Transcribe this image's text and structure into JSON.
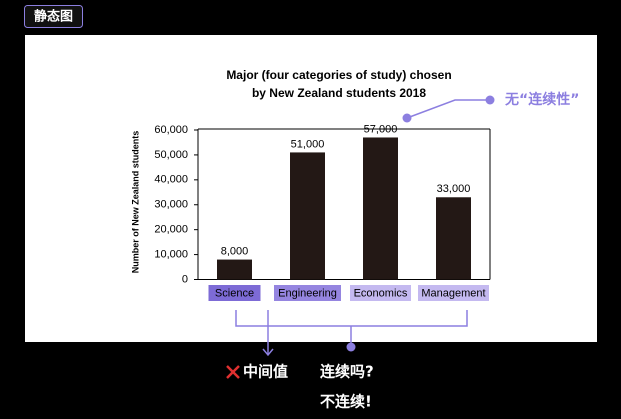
{
  "badge": "静态图",
  "chart_data": {
    "type": "bar",
    "title": [
      "Major (four categories of study) chosen",
      "by New Zealand students 2018"
    ],
    "y_label": "Number of New Zealand students",
    "categories": [
      "Science",
      "Engineering",
      "Economics",
      "Management"
    ],
    "category_colors": [
      "#7d6bd6",
      "#9585e0",
      "#c4b9f0",
      "#c4b9f0"
    ],
    "values": [
      8000,
      51000,
      57000,
      33000
    ],
    "value_labels": [
      "8,000",
      "51,000",
      "57,000",
      "33,000"
    ],
    "color": "#231815",
    "ylim": [
      0,
      60000
    ],
    "yticks": [
      0,
      {
        "value": 10000,
        "label": "10,000"
      },
      {
        "value": 20000,
        "label": "20,000"
      },
      {
        "value": 30000,
        "label": "30,000"
      },
      {
        "value": 40000,
        "label": "40,000"
      },
      {
        "value": 50000,
        "label": "50,000"
      },
      {
        "value": 60000,
        "label": "60,000"
      }
    ],
    "grid": false,
    "annotations": {
      "no_continuity": "无“连续性”",
      "not_midvalue": "中间值",
      "continuous_q": "连续吗?",
      "not_continuous": "不连续!"
    }
  }
}
